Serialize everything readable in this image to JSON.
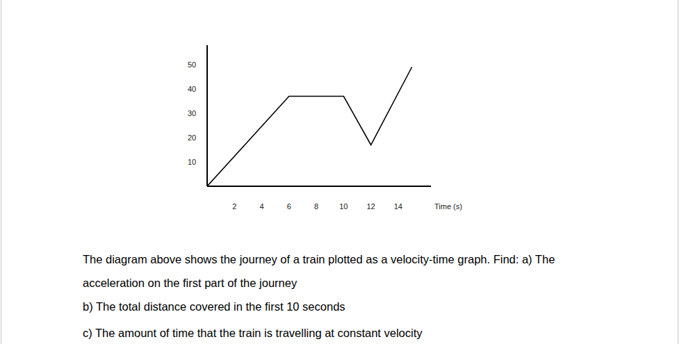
{
  "chart_data": {
    "type": "line",
    "x": [
      0,
      6,
      10,
      12,
      15
    ],
    "values": [
      0,
      37,
      37,
      17,
      49
    ],
    "color": "#000000",
    "xlim": [
      0,
      16.4
    ],
    "ylim": [
      0,
      58
    ],
    "xticks": [
      2,
      4,
      6,
      8,
      10,
      12,
      14
    ],
    "yticks": [
      10,
      20,
      30,
      40,
      50
    ],
    "x_label": "Time (s)",
    "grid": false
  },
  "question": {
    "lines": [
      "The diagram above shows the journey of a train plotted as a velocity-time graph. Find: a) The",
      "acceleration on the first part of the journey",
      "b) The total distance covered in the first 10 seconds",
      "c) The amount of time that the train is travelling at constant velocity"
    ]
  }
}
